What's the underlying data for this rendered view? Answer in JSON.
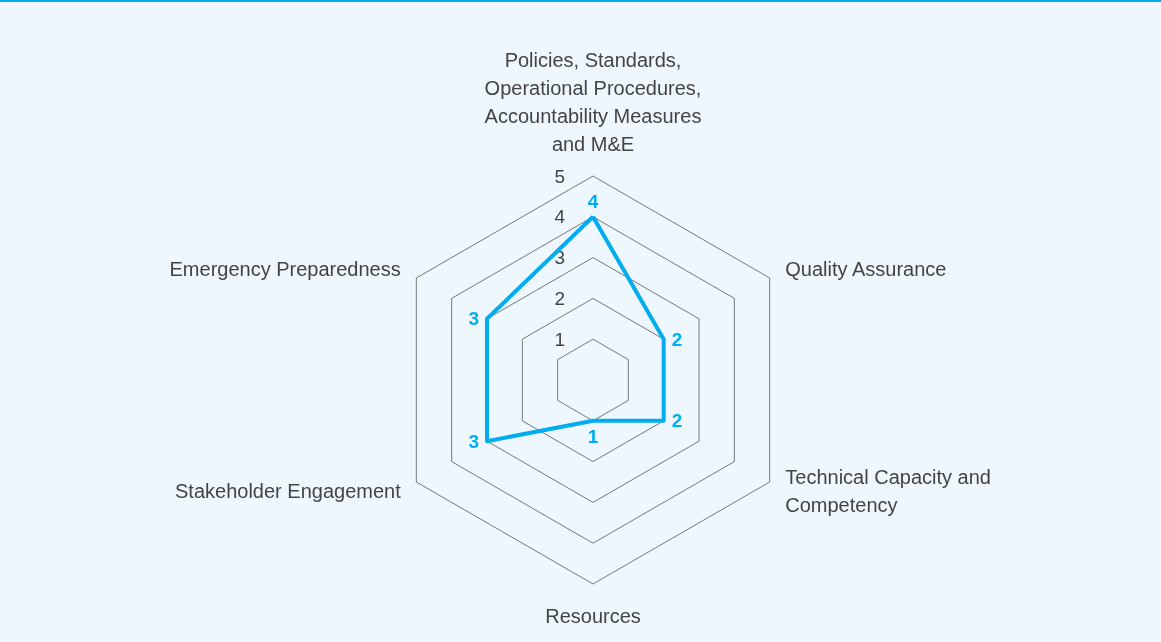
{
  "chart_data": {
    "type": "radar",
    "categories": [
      "Policies, Standards, Operational Procedures, Accountability Measures and M&E",
      "Quality Assurance",
      "Technical Capacity and Competency",
      "Resources",
      "Stakeholder Engagement",
      "Emergency Preparedness"
    ],
    "series": [
      {
        "color": "#00aeef",
        "values": [
          4,
          2,
          2,
          1,
          3,
          3
        ]
      }
    ],
    "ylim": [
      0,
      5
    ],
    "yticks": [
      1,
      2,
      3,
      4,
      5
    ],
    "data_labels": true,
    "marker": "none",
    "line_style": "solid"
  }
}
